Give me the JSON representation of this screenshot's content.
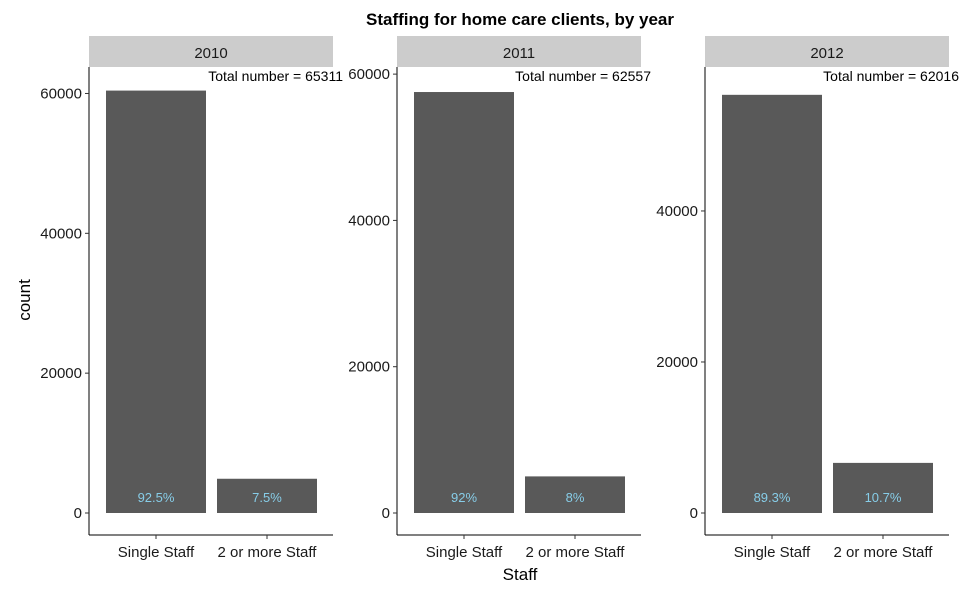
{
  "chart_data": {
    "type": "bar",
    "title": "Staffing for home care clients, by year",
    "xlabel": "Staff",
    "ylabel": "count",
    "categories": [
      "Single Staff",
      "2 or more Staff"
    ],
    "colors": {
      "bar": "#595959",
      "pct_label": "#87cde8",
      "strip": "#cccccc",
      "axis": "#333333"
    },
    "grid": false,
    "panels": [
      {
        "strip_label": "2010",
        "annotation": "Total number = 65311",
        "values": [
          60413,
          4898
        ],
        "pct_labels": [
          "92.5%",
          "7.5%"
        ],
        "ylim": [
          0,
          63500
        ],
        "y_ticks": [
          0,
          20000,
          40000,
          60000
        ]
      },
      {
        "strip_label": "2011",
        "annotation": "Total number = 62557",
        "values": [
          57552,
          5005
        ],
        "pct_labels": [
          "92%",
          "8%"
        ],
        "ylim": [
          0,
          60700
        ],
        "y_ticks": [
          0,
          20000,
          40000,
          60000
        ]
      },
      {
        "strip_label": "2012",
        "annotation": "Total number = 62016",
        "values": [
          55380,
          6636
        ],
        "pct_labels": [
          "89.3%",
          "10.7%"
        ],
        "ylim": [
          0,
          58800
        ],
        "y_ticks": [
          0,
          20000,
          40000
        ]
      }
    ]
  }
}
